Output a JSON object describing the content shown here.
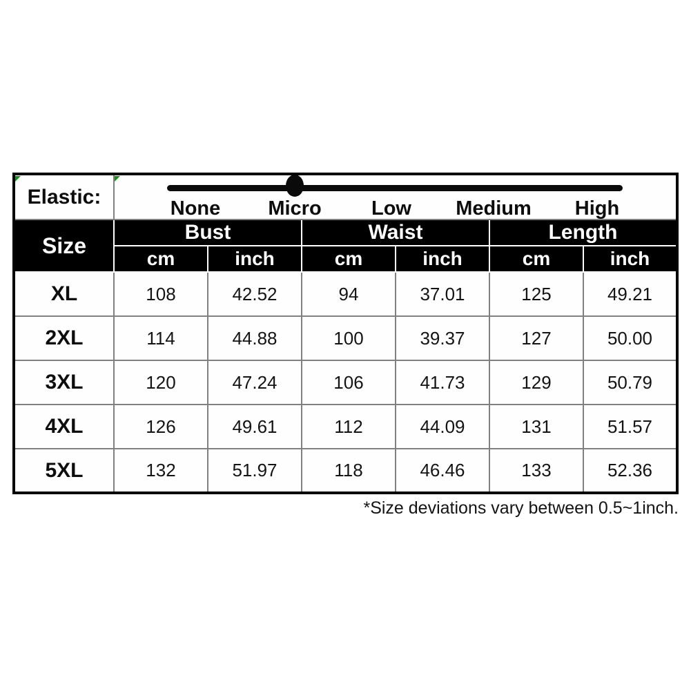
{
  "elastic": {
    "label": "Elastic:",
    "scale_labels": [
      "None",
      "Micro",
      "Low",
      "Medium",
      "High"
    ],
    "selected": "Micro"
  },
  "table": {
    "size_header": "Size",
    "group_headers": [
      "Bust",
      "Waist",
      "Length"
    ],
    "unit_headers": [
      "cm",
      "inch",
      "cm",
      "inch",
      "cm",
      "inch"
    ],
    "rows": [
      {
        "cells": [
          "XL",
          "108",
          "42.52",
          "94",
          "37.01",
          "125",
          "49.21"
        ]
      },
      {
        "cells": [
          "2XL",
          "114",
          "44.88",
          "100",
          "39.37",
          "127",
          "50.00"
        ]
      },
      {
        "cells": [
          "3XL",
          "120",
          "47.24",
          "106",
          "41.73",
          "129",
          "50.79"
        ]
      },
      {
        "cells": [
          "4XL",
          "126",
          "49.61",
          "112",
          "44.09",
          "131",
          "51.57"
        ]
      },
      {
        "cells": [
          "5XL",
          "132",
          "51.97",
          "118",
          "46.46",
          "133",
          "52.36"
        ]
      }
    ]
  },
  "footnote": {
    "text": "*Size deviations vary between 0.5~1inch."
  },
  "colors": {
    "header_bg": "#000000",
    "header_text": "#ffffff",
    "grid_line": "#808080",
    "slider_color": "#0a0a0a",
    "corner_marker_green": "#1f8b1f"
  },
  "chart_data": {
    "type": "table",
    "title": "Garment size chart",
    "elastic_scale": {
      "options": [
        "None",
        "Micro",
        "Low",
        "Medium",
        "High"
      ],
      "selected": "Micro"
    },
    "columns": [
      "Size",
      "Bust cm",
      "Bust inch",
      "Waist cm",
      "Waist inch",
      "Length cm",
      "Length inch"
    ],
    "rows": [
      [
        "XL",
        108,
        42.52,
        94,
        37.01,
        125,
        49.21
      ],
      [
        "2XL",
        114,
        44.88,
        100,
        39.37,
        127,
        50.0
      ],
      [
        "3XL",
        120,
        47.24,
        106,
        41.73,
        129,
        50.79
      ],
      [
        "4XL",
        126,
        49.61,
        112,
        44.09,
        131,
        51.57
      ],
      [
        "5XL",
        132,
        51.97,
        118,
        46.46,
        133,
        52.36
      ]
    ],
    "footnote": "*Size deviations vary between 0.5~1inch."
  }
}
